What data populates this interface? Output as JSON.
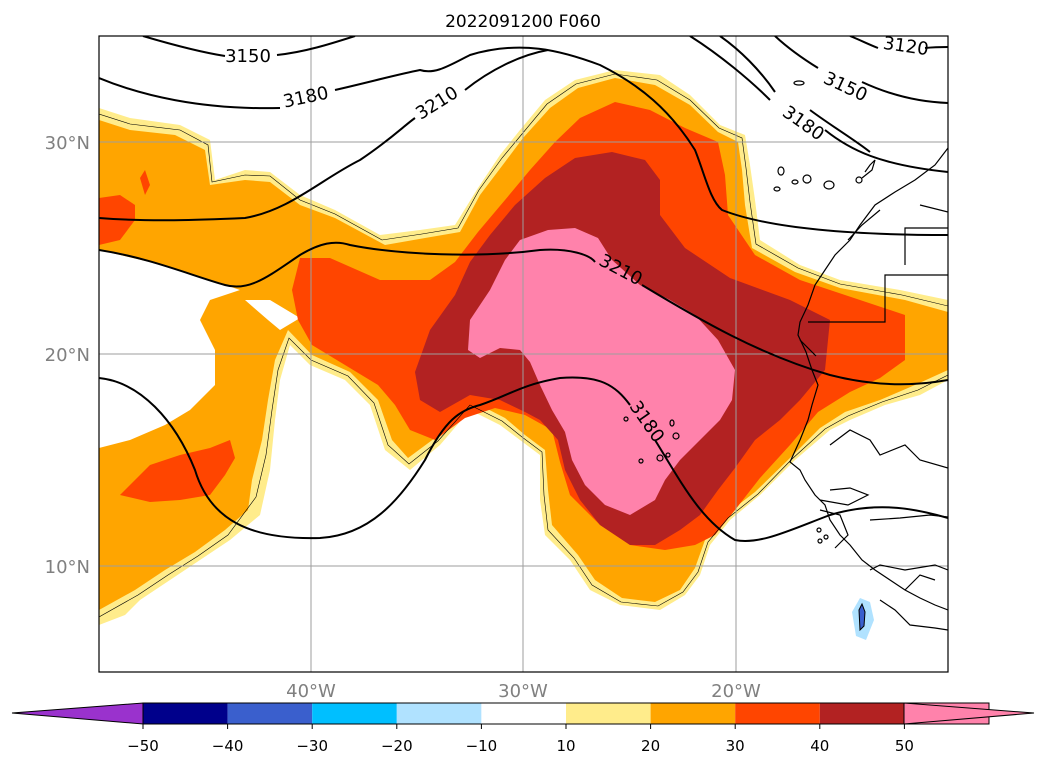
{
  "title": "2022091200 F060",
  "map": {
    "lat_labels": [
      "30°N",
      "20°N",
      "10°N"
    ],
    "lon_labels": [
      "40°W",
      "30°W",
      "20°W"
    ],
    "contour_labels": [
      "3150",
      "3180",
      "3210",
      "3120",
      "3150",
      "3180",
      "3210",
      "3180"
    ]
  },
  "colorbar": {
    "ticks": [
      "−50",
      "−40",
      "−30",
      "−20",
      "−10",
      "10",
      "20",
      "30",
      "40",
      "50"
    ],
    "colors": [
      "#9a32cd",
      "#00008b",
      "#3a5fcd",
      "#00bfff",
      "#b0e2ff",
      "#ffffff",
      "#ffec8b",
      "#ffa500",
      "#ff4500",
      "#b22222",
      "#ff82ab",
      "#ff82ab"
    ]
  }
}
